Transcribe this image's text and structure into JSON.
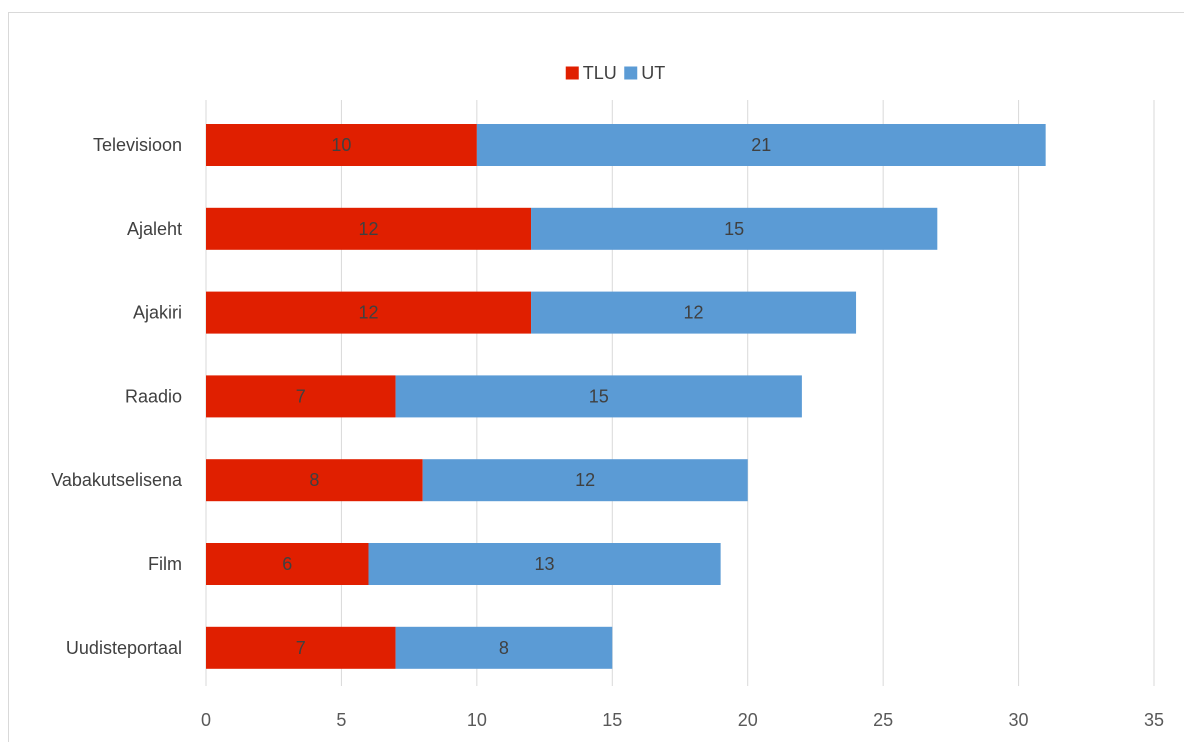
{
  "chart_data": {
    "type": "bar",
    "orientation": "horizontal",
    "stacked": true,
    "categories": [
      "Televisioon",
      "Ajaleht",
      "Ajakiri",
      "Raadio",
      "Vabakutselisena",
      "Film",
      "Uudisteportaal"
    ],
    "series": [
      {
        "name": "TLU",
        "color": "#e01f00",
        "values": [
          10,
          12,
          12,
          7,
          8,
          6,
          7
        ]
      },
      {
        "name": "UT",
        "color": "#5b9bd5",
        "values": [
          21,
          15,
          12,
          15,
          12,
          13,
          8
        ]
      }
    ],
    "xlim": [
      0,
      35
    ],
    "x_ticks": [
      "0",
      "5",
      "10",
      "15",
      "20",
      "25",
      "30",
      "35"
    ],
    "grid": "vertical",
    "legend_position": "top-center",
    "data_labels": true
  }
}
